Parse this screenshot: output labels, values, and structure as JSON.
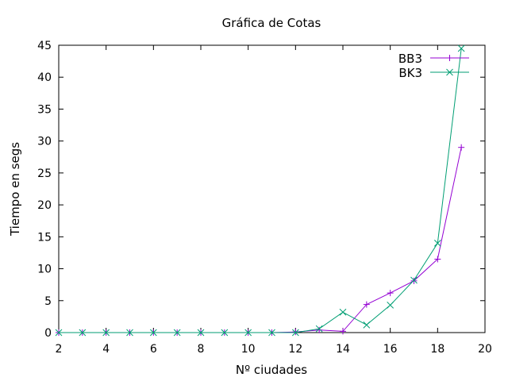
{
  "chart_data": {
    "type": "line",
    "title": "Gráfica de Cotas",
    "xlabel": "Nº ciudades",
    "ylabel": "Tiempo en segs",
    "xlim": [
      2,
      20
    ],
    "ylim": [
      0,
      45
    ],
    "xticks": [
      2,
      4,
      6,
      8,
      10,
      12,
      14,
      16,
      18,
      20
    ],
    "yticks": [
      0,
      5,
      10,
      15,
      20,
      25,
      30,
      35,
      40,
      45
    ],
    "grid": false,
    "legend_position": "top-right",
    "series": [
      {
        "name": "BB3",
        "color": "#9400d3",
        "marker": "plus",
        "x": [
          2,
          3,
          4,
          5,
          6,
          7,
          8,
          9,
          10,
          11,
          12,
          13,
          14,
          15,
          16,
          17,
          18,
          19
        ],
        "y": [
          0,
          0,
          0,
          0,
          0,
          0,
          0,
          0,
          0,
          0,
          0.1,
          0.4,
          0.2,
          4.4,
          6.2,
          8.1,
          11.5,
          29.0
        ]
      },
      {
        "name": "BK3",
        "color": "#009e73",
        "marker": "cross",
        "x": [
          2,
          3,
          4,
          5,
          6,
          7,
          8,
          9,
          10,
          11,
          12,
          13,
          14,
          15,
          16,
          17,
          18,
          19
        ],
        "y": [
          0,
          0,
          0,
          0,
          0,
          0,
          0,
          0,
          0,
          0,
          0,
          0.6,
          3.2,
          1.2,
          4.3,
          8.2,
          14.0,
          44.5
        ]
      }
    ]
  }
}
